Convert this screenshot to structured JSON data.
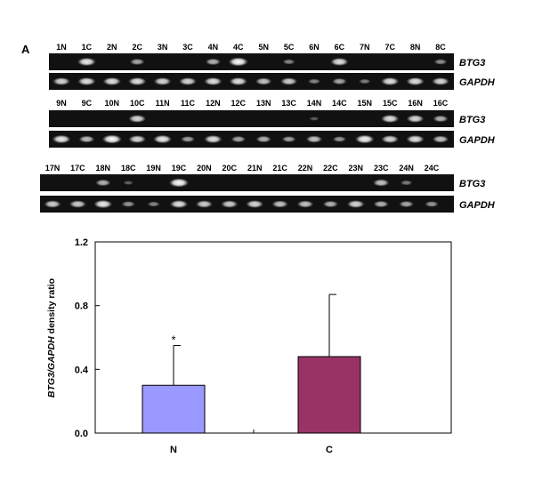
{
  "panel_label": "A",
  "gel": {
    "gene_top": "BTG3",
    "gene_bottom": "GAPDH",
    "rows": [
      {
        "lanes": [
          "1N",
          "1C",
          "2N",
          "2C",
          "3N",
          "3C",
          "4N",
          "4C",
          "5N",
          "5C",
          "6N",
          "6C",
          "7N",
          "7C",
          "8N",
          "8C"
        ],
        "btg3": [
          0.05,
          0.9,
          0.05,
          0.55,
          0.05,
          0.05,
          0.6,
          1.0,
          0.05,
          0.35,
          0.05,
          0.85,
          0.05,
          0.05,
          0.05,
          0.4
        ],
        "gapdh": [
          0.8,
          0.85,
          0.85,
          0.85,
          0.8,
          0.8,
          0.85,
          0.85,
          0.7,
          0.75,
          0.35,
          0.55,
          0.3,
          0.85,
          0.85,
          0.8
        ]
      },
      {
        "lanes": [
          "9N",
          "9C",
          "10N",
          "10C",
          "11N",
          "11C",
          "12N",
          "12C",
          "13N",
          "13C",
          "14N",
          "14C",
          "15N",
          "15C",
          "16N",
          "16C"
        ],
        "btg3": [
          0.05,
          0.05,
          0.05,
          0.8,
          0.05,
          0.05,
          0.05,
          0.05,
          0.05,
          0.05,
          0.12,
          0.05,
          0.05,
          0.85,
          0.8,
          0.6
        ],
        "gapdh": [
          0.9,
          0.65,
          1.0,
          0.8,
          0.9,
          0.5,
          0.85,
          0.55,
          0.6,
          0.5,
          0.7,
          0.45,
          0.95,
          0.8,
          0.85,
          0.7
        ]
      },
      {
        "lanes": [
          "17N",
          "17C",
          "18N",
          "18C",
          "19N",
          "19C",
          "20N",
          "20C",
          "21N",
          "21C",
          "22N",
          "22C",
          "23N",
          "23C",
          "24N",
          "24C"
        ],
        "btg3": [
          0.05,
          0.05,
          0.6,
          0.15,
          0.05,
          1.0,
          0.05,
          0.05,
          0.05,
          0.05,
          0.05,
          0.05,
          0.05,
          0.7,
          0.3,
          0.05
        ],
        "gapdh": [
          0.75,
          0.75,
          0.9,
          0.45,
          0.35,
          0.85,
          0.75,
          0.75,
          0.8,
          0.7,
          0.7,
          0.6,
          0.8,
          0.6,
          0.55,
          0.45
        ]
      }
    ]
  },
  "chart_data": {
    "type": "bar",
    "categories": [
      "N",
      "C"
    ],
    "values": [
      0.3,
      0.48
    ],
    "errors": [
      0.25,
      0.39
    ],
    "colors": [
      "#9999ff",
      "#993366"
    ],
    "annotations": [
      "*",
      ""
    ],
    "ylabel_gene": "BTG3/GAPDH",
    "ylabel_rest": " density ratio",
    "ylim": [
      0.0,
      1.2
    ],
    "yticks": [
      "0.0",
      "0.4",
      "0.8",
      "1.2"
    ],
    "ytick_values": [
      0.0,
      0.4,
      0.8,
      1.2
    ]
  }
}
